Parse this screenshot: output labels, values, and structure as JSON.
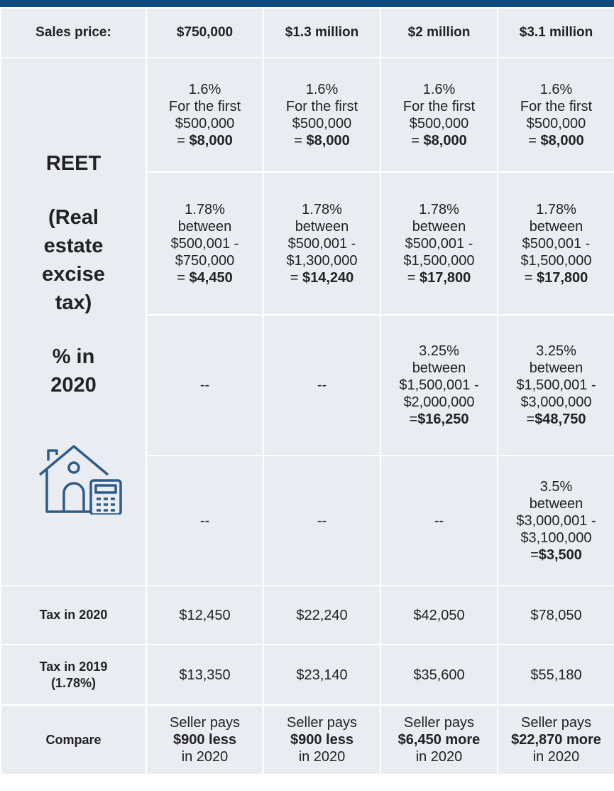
{
  "header": [
    "Sales price:",
    "$750,000",
    "$1.3 million",
    "$2 million",
    "$3.1 million"
  ],
  "reet_label": {
    "title": "REET",
    "subtitle": "(Real estate excise tax)",
    "year": "% in 2020"
  },
  "reet_rows": [
    [
      [
        "1.6%",
        "For the first",
        "$500,000",
        {
          "normal": "= ",
          "bold": "$8,000"
        }
      ],
      [
        "1.6%",
        "For the first",
        "$500,000",
        {
          "normal": "= ",
          "bold": "$8,000"
        }
      ],
      [
        "1.6%",
        "For the first",
        "$500,000",
        {
          "normal": "= ",
          "bold": "$8,000"
        }
      ],
      [
        "1.6%",
        "For the first",
        "$500,000",
        {
          "normal": "= ",
          "bold": "$8,000"
        }
      ]
    ],
    [
      [
        "1.78%",
        "between",
        "$500,001 -",
        "$750,000",
        {
          "normal": "= ",
          "bold": "$4,450"
        }
      ],
      [
        "1.78%",
        "between",
        "$500,001 -",
        "$1,300,000",
        {
          "normal": "= ",
          "bold": "$14,240"
        }
      ],
      [
        "1.78%",
        "between",
        "$500,001 -",
        "$1,500,000",
        {
          "normal": "= ",
          "bold": "$17,800"
        }
      ],
      [
        "1.78%",
        "between",
        "$500,001 -",
        "$1,500,000",
        {
          "normal": "= ",
          "bold": "$17,800"
        }
      ]
    ],
    [
      [
        "--"
      ],
      [
        "--"
      ],
      [
        "3.25%",
        "between",
        "$1,500,001 -",
        "$2,000,000",
        {
          "normal": "=",
          "bold": "$16,250"
        }
      ],
      [
        "3.25%",
        "between",
        "$1,500,001 -",
        "$3,000,000",
        {
          "normal": "=",
          "bold": "$48,750"
        }
      ]
    ],
    [
      [
        "--"
      ],
      [
        "--"
      ],
      [
        "--"
      ],
      [
        "3.5%",
        "between",
        "$3,000,001 -",
        "$3,100,000",
        {
          "normal": "=",
          "bold": "$3,500"
        }
      ]
    ]
  ],
  "summary_rows": [
    {
      "label": [
        "Tax in 2020"
      ],
      "cells": [
        [
          "$12,450"
        ],
        [
          "$22,240"
        ],
        [
          "$42,050"
        ],
        [
          "$78,050"
        ]
      ]
    },
    {
      "label": [
        "Tax in 2019",
        "(1.78%)"
      ],
      "cells": [
        [
          "$13,350"
        ],
        [
          "$23,140"
        ],
        [
          "$35,600"
        ],
        [
          "$55,180"
        ]
      ]
    },
    {
      "label": [
        "Compare"
      ],
      "cells": [
        [
          "Seller pays",
          {
            "bold": "$900 less"
          },
          "in 2020"
        ],
        [
          "Seller pays",
          {
            "bold": "$900 less"
          },
          "in 2020"
        ],
        [
          "Seller pays",
          {
            "bold": "$6,450 more"
          },
          "in 2020"
        ],
        [
          "Seller pays",
          {
            "bold": "$22,870 more"
          },
          "in 2020"
        ]
      ]
    }
  ]
}
